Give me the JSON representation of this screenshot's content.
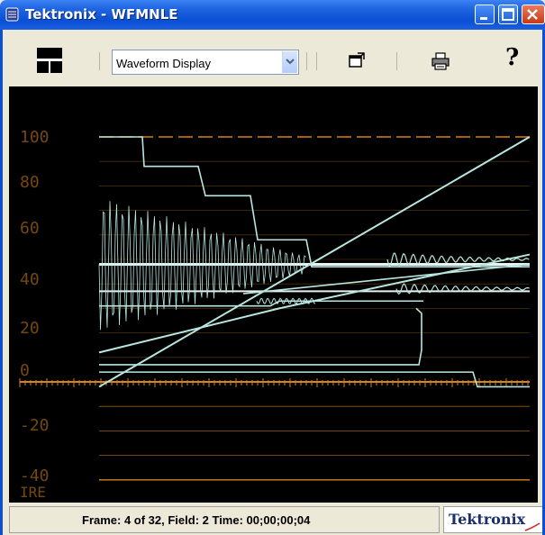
{
  "window": {
    "title": "Tektronix - WFMNLE",
    "controls": [
      "minimize",
      "maximize",
      "close"
    ]
  },
  "toolbar": {
    "layout_icon": "layout-grid-icon",
    "display_select": {
      "selected": "Waveform Display"
    },
    "icons": [
      "popout-window-icon",
      "printer-icon",
      "help-icon"
    ],
    "help_label": "?"
  },
  "waveform": {
    "y_axis_labels": [
      "100",
      "80",
      "60",
      "40",
      "20",
      "0",
      "-20",
      "-40"
    ],
    "unit_label": "IRE",
    "trace_color": "#b8e6e0",
    "graticule_color": "#d4841a"
  },
  "status": {
    "text": "Frame: 4 of 32,  Field: 2   Time: 00;00;00;04"
  },
  "brand": {
    "name": "Tektronix"
  }
}
